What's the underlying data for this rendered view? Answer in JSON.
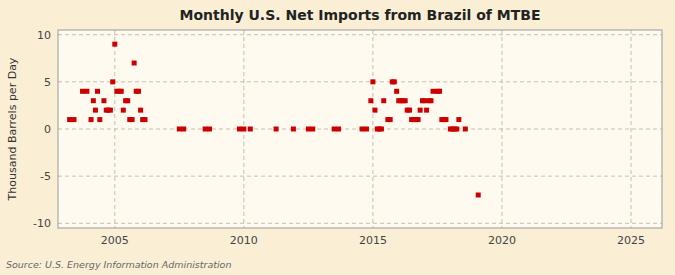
{
  "chart_data": {
    "type": "scatter",
    "title": "Monthly U.S. Net Imports from Brazil of MTBE",
    "y_label": "Thousand Barrels per Day",
    "annotations": [
      "Source: U.S. Energy Information Administration"
    ],
    "color": "#cc0000",
    "marker": "square",
    "grid": true,
    "xlim": [
      2002.8,
      2026.2
    ],
    "ylim": [
      -10.5,
      10.5
    ],
    "xticks": [
      2005,
      2010,
      2015,
      2020,
      2025
    ],
    "yticks": [
      -10,
      -5,
      0,
      5,
      10
    ],
    "x": [
      2003.25,
      2003.42,
      2003.75,
      2003.92,
      2004.08,
      2004.17,
      2004.25,
      2004.33,
      2004.42,
      2004.58,
      2004.67,
      2004.75,
      2004.83,
      2004.92,
      2005.0,
      2005.08,
      2005.17,
      2005.25,
      2005.33,
      2005.42,
      2005.5,
      2005.58,
      2005.67,
      2005.75,
      2005.83,
      2005.92,
      2006.0,
      2006.08,
      2006.17,
      2007.5,
      2007.67,
      2008.5,
      2008.67,
      2009.83,
      2010.0,
      2010.25,
      2011.25,
      2011.92,
      2012.5,
      2012.67,
      2013.5,
      2013.67,
      2014.58,
      2014.75,
      2014.92,
      2015.0,
      2015.08,
      2015.17,
      2015.25,
      2015.33,
      2015.42,
      2015.58,
      2015.67,
      2015.75,
      2015.83,
      2015.92,
      2016.0,
      2016.08,
      2016.17,
      2016.25,
      2016.33,
      2016.42,
      2016.5,
      2016.58,
      2016.67,
      2016.75,
      2016.83,
      2016.92,
      2017.0,
      2017.08,
      2017.17,
      2017.25,
      2017.33,
      2017.5,
      2017.58,
      2017.67,
      2017.75,
      2017.83,
      2018.0,
      2018.08,
      2018.17,
      2018.25,
      2018.33,
      2018.58,
      2019.08
    ],
    "values": [
      1,
      1,
      4,
      4,
      1,
      3,
      2,
      4,
      1,
      3,
      2,
      2,
      2,
      5,
      9,
      4,
      4,
      4,
      2,
      3,
      3,
      1,
      1,
      7,
      4,
      4,
      2,
      1,
      1,
      0,
      0,
      0,
      0,
      0,
      0,
      0,
      0,
      0,
      0,
      0,
      0,
      0,
      0,
      0,
      3,
      5,
      2,
      0,
      0,
      0,
      3,
      1,
      1,
      5,
      5,
      4,
      3,
      3,
      3,
      3,
      2,
      2,
      1,
      1,
      1,
      1,
      2,
      3,
      3,
      2,
      3,
      3,
      4,
      4,
      4,
      1,
      1,
      1,
      0,
      0,
      0,
      0,
      1,
      0,
      -7
    ]
  }
}
